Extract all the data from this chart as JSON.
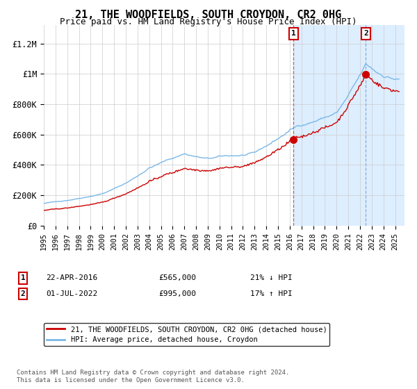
{
  "title": "21, THE WOODFIELDS, SOUTH CROYDON, CR2 0HG",
  "subtitle": "Price paid vs. HM Land Registry's House Price Index (HPI)",
  "title_fontsize": 11,
  "subtitle_fontsize": 9,
  "ylabel_ticks": [
    "£0",
    "£200K",
    "£400K",
    "£600K",
    "£800K",
    "£1M",
    "£1.2M"
  ],
  "ytick_vals": [
    0,
    200000,
    400000,
    600000,
    800000,
    1000000,
    1200000
  ],
  "ylim": [
    0,
    1320000
  ],
  "xlim_start": 1995.0,
  "xlim_end": 2025.8,
  "hpi_color": "#7ab8e8",
  "price_color": "#cc0000",
  "shade_color": "#ddeeff",
  "plot_bg": "#ffffff",
  "grid_color": "#cccccc",
  "sale1_x": 2016.31,
  "sale1_y": 565000,
  "sale2_x": 2022.5,
  "sale2_y": 995000,
  "legend_line1": "21, THE WOODFIELDS, SOUTH CROYDON, CR2 0HG (detached house)",
  "legend_line2": "HPI: Average price, detached house, Croydon",
  "annotation1_num": "1",
  "annotation1_date": "22-APR-2016",
  "annotation1_price": "£565,000",
  "annotation1_pct": "21% ↓ HPI",
  "annotation2_num": "2",
  "annotation2_date": "01-JUL-2022",
  "annotation2_price": "£995,000",
  "annotation2_pct": "17% ↑ HPI",
  "footer": "Contains HM Land Registry data © Crown copyright and database right 2024.\nThis data is licensed under the Open Government Licence v3.0.",
  "xtick_years": [
    1995,
    1996,
    1997,
    1998,
    1999,
    2000,
    2001,
    2002,
    2003,
    2004,
    2005,
    2006,
    2007,
    2008,
    2009,
    2010,
    2011,
    2012,
    2013,
    2014,
    2015,
    2016,
    2017,
    2018,
    2019,
    2020,
    2021,
    2022,
    2023,
    2024,
    2025
  ]
}
